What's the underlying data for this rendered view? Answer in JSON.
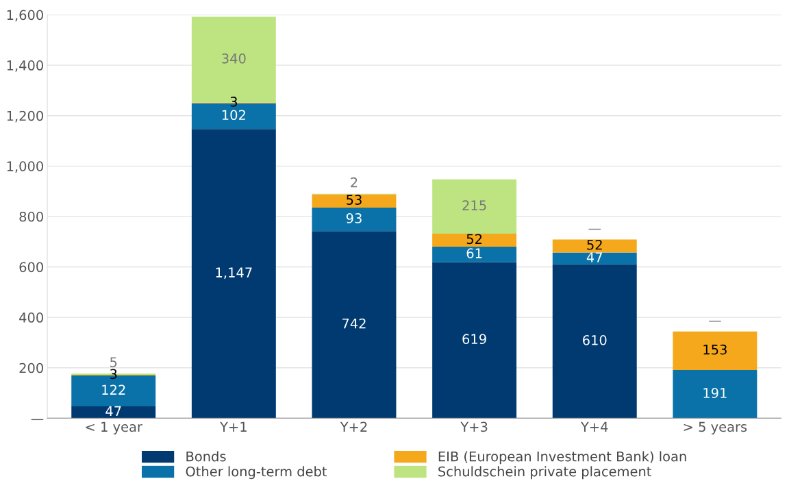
{
  "chart_data": {
    "type": "bar",
    "stacked": true,
    "categories": [
      "< 1 year",
      "Y+1",
      "Y+2",
      "Y+3",
      "Y+4",
      "> 5 years"
    ],
    "series": [
      {
        "name": "Bonds",
        "color": "#003a70",
        "values": [
          47,
          1147,
          742,
          619,
          610,
          0
        ],
        "value_labels": [
          "47",
          "1,147",
          "742",
          "619",
          "610",
          null
        ]
      },
      {
        "name": "Other long-term debt",
        "color": "#0a72a8",
        "values": [
          122,
          102,
          93,
          61,
          47,
          191
        ],
        "value_labels": [
          "122",
          "102",
          "93",
          "61",
          "47",
          "191"
        ]
      },
      {
        "name": "EIB (European Investment Bank) loan",
        "color": "#f5a81c",
        "values": [
          3,
          3,
          53,
          52,
          52,
          153
        ],
        "value_labels": [
          "3",
          "3",
          "53",
          "52",
          "52",
          "153"
        ]
      },
      {
        "name": "Schuldschein private placement",
        "color": "#bde481",
        "values": [
          5,
          340,
          2,
          215,
          0,
          0
        ],
        "value_labels": [
          "5",
          "340",
          "2",
          "215",
          "—",
          "—"
        ]
      }
    ],
    "ylim": [
      0,
      1600
    ],
    "yticks": [
      {
        "value": 0,
        "label": "—"
      },
      {
        "value": 200,
        "label": "200"
      },
      {
        "value": 400,
        "label": "400"
      },
      {
        "value": 600,
        "label": "600"
      },
      {
        "value": 800,
        "label": "800"
      },
      {
        "value": 1000,
        "label": "1,000"
      },
      {
        "value": 1200,
        "label": "1,200"
      },
      {
        "value": 1400,
        "label": "1,400"
      },
      {
        "value": 1600,
        "label": "1,600"
      }
    ],
    "grid": "y",
    "legend": "bottom"
  }
}
